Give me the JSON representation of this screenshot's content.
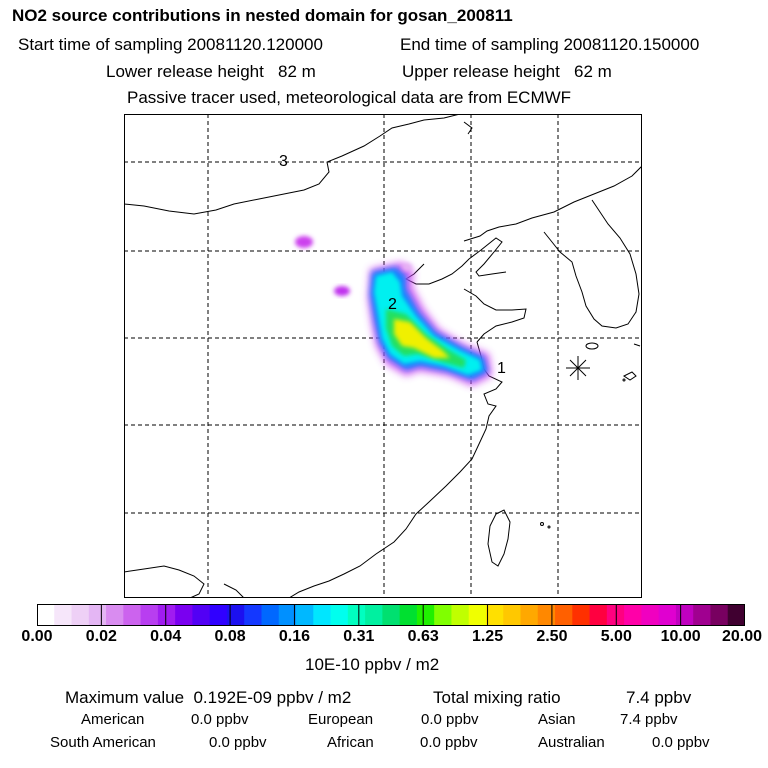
{
  "header": {
    "title": "NO2 source contributions in nested domain for gosan_200811",
    "start_time": "Start time of sampling 20081120.120000",
    "end_time": "End time of sampling 20081120.150000",
    "lower_height": "Lower release height   82 m",
    "upper_height": "Upper release height   62 m",
    "tracer_note": "Passive tracer used, meteorological data are from ECMWF"
  },
  "map": {
    "markers": [
      {
        "label": "1"
      },
      {
        "label": "2"
      },
      {
        "label": "3"
      }
    ],
    "receptor_symbol": "asterisk"
  },
  "colorbar": {
    "tick_labels": [
      "0.00",
      "0.02",
      "0.04",
      "0.08",
      "0.16",
      "0.31",
      "0.63",
      "1.25",
      "2.50",
      "5.00",
      "10.00",
      "20.00"
    ],
    "unit_label": "10E-10 ppbv / m2",
    "colors": [
      "#ffffff",
      "#f6e6fa",
      "#eed0f6",
      "#e4b6f4",
      "#d98cf0",
      "#cc63ee",
      "#b83ef0",
      "#a01cf0",
      "#7a00f0",
      "#5200f5",
      "#3000ff",
      "#1c10f0",
      "#1438ff",
      "#0068ff",
      "#0090ff",
      "#00b8ff",
      "#00e6ff",
      "#00ffee",
      "#00ffc0",
      "#00f0a0",
      "#00e070",
      "#00e030",
      "#20f000",
      "#80ff00",
      "#c0ff00",
      "#f0ff00",
      "#ffe000",
      "#ffc800",
      "#ffa800",
      "#ff8800",
      "#ff6000",
      "#ff3000",
      "#ff0040",
      "#ff0080",
      "#ff00a8",
      "#f000c0",
      "#e000d0",
      "#c000c0",
      "#a00090",
      "#780060",
      "#400030"
    ]
  },
  "summary": {
    "max_label": "Maximum value  0.192E-09 ppbv / m2",
    "total_label": "Total mixing ratio",
    "total_value": "7.4 ppbv",
    "regions": [
      {
        "name": "American",
        "value": "0.0 ppbv"
      },
      {
        "name": "European",
        "value": "0.0 ppbv"
      },
      {
        "name": "Asian",
        "value": "7.4 ppbv"
      },
      {
        "name": "South American",
        "value": "0.0 ppbv"
      },
      {
        "name": "African",
        "value": "0.0 ppbv"
      },
      {
        "name": "Australian",
        "value": "0.0 ppbv"
      }
    ]
  }
}
